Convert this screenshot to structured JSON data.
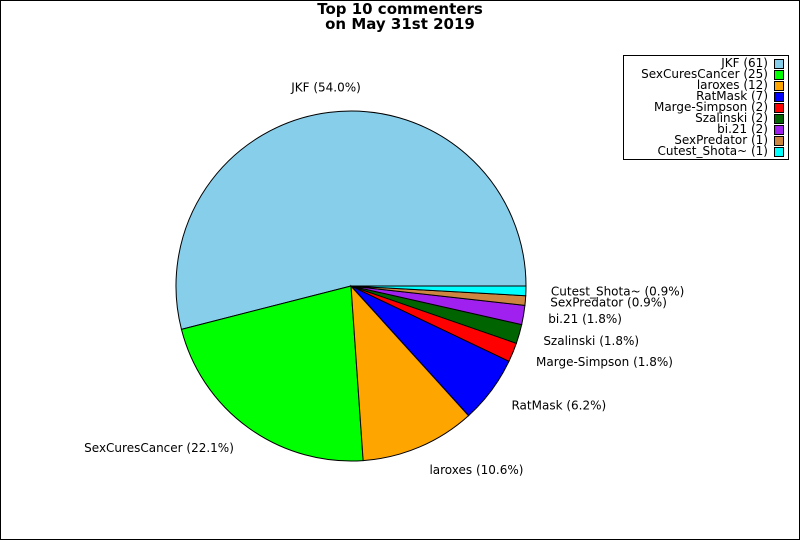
{
  "title_lines": [
    "Top 10 commenters",
    "on May 31st 2019"
  ],
  "chart_data": {
    "type": "pie",
    "title": "Top 10 commenters on May 31st 2019",
    "legend_position": "top-right",
    "slices": [
      {
        "name": "JKF",
        "value": 61,
        "percent_label": "JKF (54.0%)",
        "legend_label": "JKF (61)",
        "color": "#87ceeb"
      },
      {
        "name": "SexCuresCancer",
        "value": 25,
        "percent_label": "SexCuresCancer (22.1%)",
        "legend_label": "SexCuresCancer (25)",
        "color": "#00ff00"
      },
      {
        "name": "laroxes",
        "value": 12,
        "percent_label": "laroxes (10.6%)",
        "legend_label": "laroxes (12)",
        "color": "#ffa500"
      },
      {
        "name": "RatMask",
        "value": 7,
        "percent_label": "RatMask (6.2%)",
        "legend_label": "RatMask (7)",
        "color": "#0000ff"
      },
      {
        "name": "Marge-Simpson",
        "value": 2,
        "percent_label": "Marge-Simpson (1.8%)",
        "legend_label": "Marge-Simpson (2)",
        "color": "#ff0000"
      },
      {
        "name": "Szalinski",
        "value": 2,
        "percent_label": "Szalinski (1.8%)",
        "legend_label": "Szalinski (2)",
        "color": "#006400"
      },
      {
        "name": "bi.21",
        "value": 2,
        "percent_label": "bi.21 (1.8%)",
        "legend_label": "bi.21 (2)",
        "color": "#a020f0"
      },
      {
        "name": "SexPredator",
        "value": 1,
        "percent_label": "SexPredator (0.9%)",
        "legend_label": "SexPredator (1)",
        "color": "#cd853f"
      },
      {
        "name": "Cutest_Shota~",
        "value": 1,
        "percent_label": "Cutest_Shota~ (0.9%)",
        "legend_label": "Cutest_Shota~ (1)",
        "color": "#00ffff"
      }
    ]
  }
}
